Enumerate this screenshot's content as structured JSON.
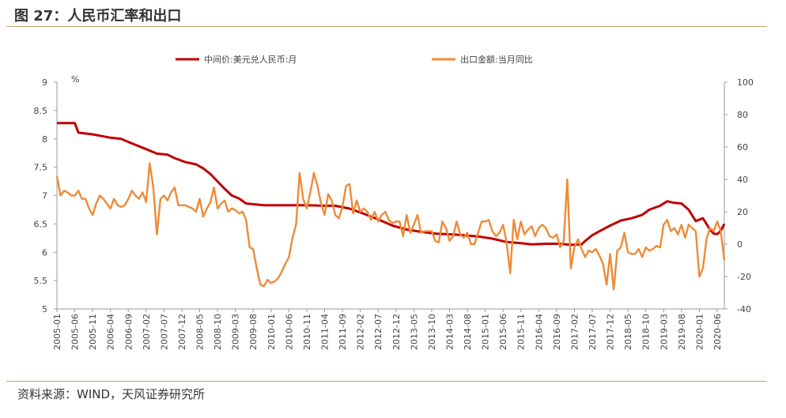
{
  "header": {
    "title": "图 27：人民币汇率和出口"
  },
  "footer": {
    "source": "资料来源：WIND，天风证券研究所"
  },
  "colors": {
    "rate": "#c00000",
    "export": "#ed8b38",
    "rule": "#c8a46e",
    "axis": "#999999"
  },
  "chart_data": {
    "type": "line",
    "left_axis": {
      "unit": "%",
      "range": [
        5,
        9
      ],
      "ticks": [
        5,
        5.5,
        6,
        6.5,
        7,
        7.5,
        8,
        8.5,
        9
      ]
    },
    "right_axis": {
      "range": [
        -40,
        100
      ],
      "ticks": [
        -40,
        -20,
        0,
        20,
        40,
        60,
        80,
        100
      ]
    },
    "x_tick_labels": [
      "2005-01",
      "2005-06",
      "2005-11",
      "2006-04",
      "2006-09",
      "2007-02",
      "2007-07",
      "2007-12",
      "2008-05",
      "2008-10",
      "2009-03",
      "2009-08",
      "2010-01",
      "2010-06",
      "2010-11",
      "2011-04",
      "2011-09",
      "2012-02",
      "2012-07",
      "2012-12",
      "2013-05",
      "2013-10",
      "2014-03",
      "2014-08",
      "2015-01",
      "2015-06",
      "2015-11",
      "2016-04",
      "2016-09",
      "2017-02",
      "2017-07",
      "2017-12",
      "2018-05",
      "2018-10",
      "2019-03",
      "2019-08",
      "2020-01",
      "2020-06"
    ],
    "months": 187,
    "series": [
      {
        "name": "中间价:美元兑人民币:月",
        "axis": "left",
        "color": "#c00000",
        "points": [
          [
            0,
            8.28
          ],
          [
            5,
            8.28
          ],
          [
            6,
            8.11
          ],
          [
            10,
            8.08
          ],
          [
            15,
            8.02
          ],
          [
            18,
            8.0
          ],
          [
            21,
            7.92
          ],
          [
            25,
            7.82
          ],
          [
            28,
            7.74
          ],
          [
            31,
            7.72
          ],
          [
            33,
            7.66
          ],
          [
            36,
            7.59
          ],
          [
            39,
            7.55
          ],
          [
            41,
            7.48
          ],
          [
            43,
            7.38
          ],
          [
            45,
            7.25
          ],
          [
            47,
            7.12
          ],
          [
            49,
            7.0
          ],
          [
            51,
            6.95
          ],
          [
            53,
            6.86
          ],
          [
            58,
            6.83
          ],
          [
            70,
            6.83
          ],
          [
            75,
            6.82
          ],
          [
            78,
            6.82
          ],
          [
            82,
            6.77
          ],
          [
            86,
            6.68
          ],
          [
            90,
            6.58
          ],
          [
            94,
            6.47
          ],
          [
            98,
            6.4
          ],
          [
            102,
            6.36
          ],
          [
            106,
            6.33
          ],
          [
            112,
            6.31
          ],
          [
            118,
            6.28
          ],
          [
            122,
            6.24
          ],
          [
            126,
            6.18
          ],
          [
            130,
            6.16
          ],
          [
            133,
            6.14
          ],
          [
            137,
            6.15
          ],
          [
            141,
            6.15
          ],
          [
            144,
            6.13
          ],
          [
            147,
            6.14
          ],
          [
            148,
            6.2
          ],
          [
            150,
            6.3
          ],
          [
            152,
            6.37
          ],
          [
            155,
            6.47
          ],
          [
            158,
            6.56
          ],
          [
            161,
            6.6
          ],
          [
            164,
            6.66
          ],
          [
            166,
            6.75
          ],
          [
            169,
            6.82
          ],
          [
            171,
            6.9
          ],
          [
            173,
            6.87
          ],
          [
            175,
            6.86
          ],
          [
            177,
            6.75
          ],
          [
            179,
            6.55
          ],
          [
            181,
            6.6
          ],
          [
            183,
            6.4
          ],
          [
            184,
            6.33
          ],
          [
            185,
            6.32
          ],
          [
            186,
            6.38
          ],
          [
            187,
            6.5
          ]
        ]
      },
      {
        "name": "出口金额:当月同比",
        "axis": "right",
        "color": "#ed8b38",
        "points": [
          [
            0,
            42
          ],
          [
            1,
            30
          ],
          [
            2,
            33
          ],
          [
            3,
            32
          ],
          [
            4,
            30
          ],
          [
            5,
            30
          ],
          [
            6,
            33
          ],
          [
            7,
            28
          ],
          [
            8,
            28
          ],
          [
            9,
            22
          ],
          [
            10,
            18
          ],
          [
            11,
            25
          ],
          [
            12,
            30
          ],
          [
            13,
            28
          ],
          [
            14,
            25
          ],
          [
            15,
            22
          ],
          [
            16,
            28
          ],
          [
            17,
            24
          ],
          [
            18,
            23
          ],
          [
            19,
            24
          ],
          [
            20,
            28
          ],
          [
            21,
            33
          ],
          [
            22,
            30
          ],
          [
            23,
            28
          ],
          [
            24,
            32
          ],
          [
            25,
            26
          ],
          [
            26,
            50
          ],
          [
            27,
            35
          ],
          [
            28,
            6
          ],
          [
            29,
            28
          ],
          [
            30,
            30
          ],
          [
            31,
            27
          ],
          [
            32,
            32
          ],
          [
            33,
            35
          ],
          [
            34,
            24
          ],
          [
            35,
            24
          ],
          [
            36,
            24
          ],
          [
            37,
            23
          ],
          [
            38,
            22
          ],
          [
            39,
            20
          ],
          [
            40,
            28
          ],
          [
            41,
            17
          ],
          [
            42,
            22
          ],
          [
            43,
            26
          ],
          [
            44,
            35
          ],
          [
            45,
            22
          ],
          [
            46,
            25
          ],
          [
            47,
            27
          ],
          [
            48,
            20
          ],
          [
            49,
            22
          ],
          [
            50,
            21
          ],
          [
            51,
            19
          ],
          [
            52,
            20
          ],
          [
            53,
            15
          ],
          [
            54,
            -2
          ],
          [
            55,
            -3
          ],
          [
            56,
            -15
          ],
          [
            57,
            -25
          ],
          [
            58,
            -26
          ],
          [
            59,
            -22
          ],
          [
            60,
            -24
          ],
          [
            61,
            -23
          ],
          [
            62,
            -21
          ],
          [
            63,
            -17
          ],
          [
            64,
            -12
          ],
          [
            65,
            -8
          ],
          [
            66,
            4
          ],
          [
            67,
            12
          ],
          [
            68,
            44
          ],
          [
            69,
            28
          ],
          [
            70,
            22
          ],
          [
            71,
            32
          ],
          [
            72,
            44
          ],
          [
            73,
            36
          ],
          [
            74,
            25
          ],
          [
            75,
            18
          ],
          [
            76,
            31
          ],
          [
            77,
            27
          ],
          [
            78,
            18
          ],
          [
            79,
            16
          ],
          [
            80,
            23
          ],
          [
            81,
            36
          ],
          [
            82,
            37
          ],
          [
            83,
            19
          ],
          [
            84,
            27
          ],
          [
            85,
            20
          ],
          [
            86,
            22
          ],
          [
            87,
            20
          ],
          [
            88,
            15
          ],
          [
            89,
            20
          ],
          [
            90,
            14
          ],
          [
            91,
            18
          ],
          [
            92,
            20
          ],
          [
            93,
            15
          ],
          [
            94,
            13
          ],
          [
            95,
            14
          ],
          [
            96,
            14
          ],
          [
            97,
            5
          ],
          [
            98,
            18
          ],
          [
            99,
            7
          ],
          [
            100,
            12
          ],
          [
            101,
            18
          ],
          [
            102,
            7
          ],
          [
            103,
            8
          ],
          [
            104,
            8
          ],
          [
            105,
            8
          ],
          [
            106,
            2
          ],
          [
            107,
            1
          ],
          [
            108,
            14
          ],
          [
            109,
            10
          ],
          [
            110,
            2
          ],
          [
            111,
            5
          ],
          [
            112,
            14
          ],
          [
            113,
            6
          ],
          [
            114,
            4
          ],
          [
            115,
            7
          ],
          [
            116,
            0
          ],
          [
            117,
            0
          ],
          [
            118,
            7
          ],
          [
            119,
            14
          ],
          [
            120,
            14
          ],
          [
            121,
            15
          ],
          [
            122,
            8
          ],
          [
            123,
            5
          ],
          [
            124,
            7
          ],
          [
            125,
            12
          ],
          [
            126,
            1
          ],
          [
            127,
            -18
          ],
          [
            128,
            15
          ],
          [
            129,
            3
          ],
          [
            130,
            14
          ],
          [
            131,
            6
          ],
          [
            132,
            9
          ],
          [
            133,
            11
          ],
          [
            134,
            5
          ],
          [
            135,
            10
          ],
          [
            136,
            12
          ],
          [
            137,
            10
          ],
          [
            138,
            5
          ],
          [
            139,
            4
          ],
          [
            140,
            6
          ],
          [
            141,
            -2
          ],
          [
            142,
            2
          ],
          [
            143,
            40
          ],
          [
            144,
            -15
          ],
          [
            145,
            -2
          ],
          [
            146,
            3
          ],
          [
            147,
            -3
          ],
          [
            148,
            -8
          ],
          [
            149,
            -4
          ],
          [
            150,
            -5
          ],
          [
            151,
            -3
          ],
          [
            152,
            -7
          ],
          [
            153,
            -12
          ],
          [
            154,
            -25
          ],
          [
            155,
            -6
          ],
          [
            156,
            -28
          ],
          [
            157,
            -4
          ],
          [
            158,
            -2
          ],
          [
            159,
            7
          ],
          [
            160,
            -5
          ],
          [
            161,
            -6
          ],
          [
            162,
            -6
          ],
          [
            163,
            -3
          ],
          [
            164,
            -8
          ],
          [
            165,
            -2
          ],
          [
            166,
            -4
          ],
          [
            167,
            -3
          ],
          [
            168,
            -1
          ],
          [
            169,
            -2
          ],
          [
            170,
            12
          ],
          [
            171,
            15
          ],
          [
            172,
            8
          ],
          [
            173,
            10
          ],
          [
            174,
            6
          ],
          [
            175,
            12
          ],
          [
            176,
            4
          ],
          [
            177,
            12
          ],
          [
            178,
            10
          ],
          [
            179,
            8
          ],
          [
            180,
            -20
          ],
          [
            181,
            -15
          ],
          [
            182,
            3
          ],
          [
            183,
            10
          ],
          [
            184,
            8
          ],
          [
            185,
            14
          ],
          [
            186,
            8
          ],
          [
            187,
            -10
          ]
        ]
      }
    ]
  }
}
